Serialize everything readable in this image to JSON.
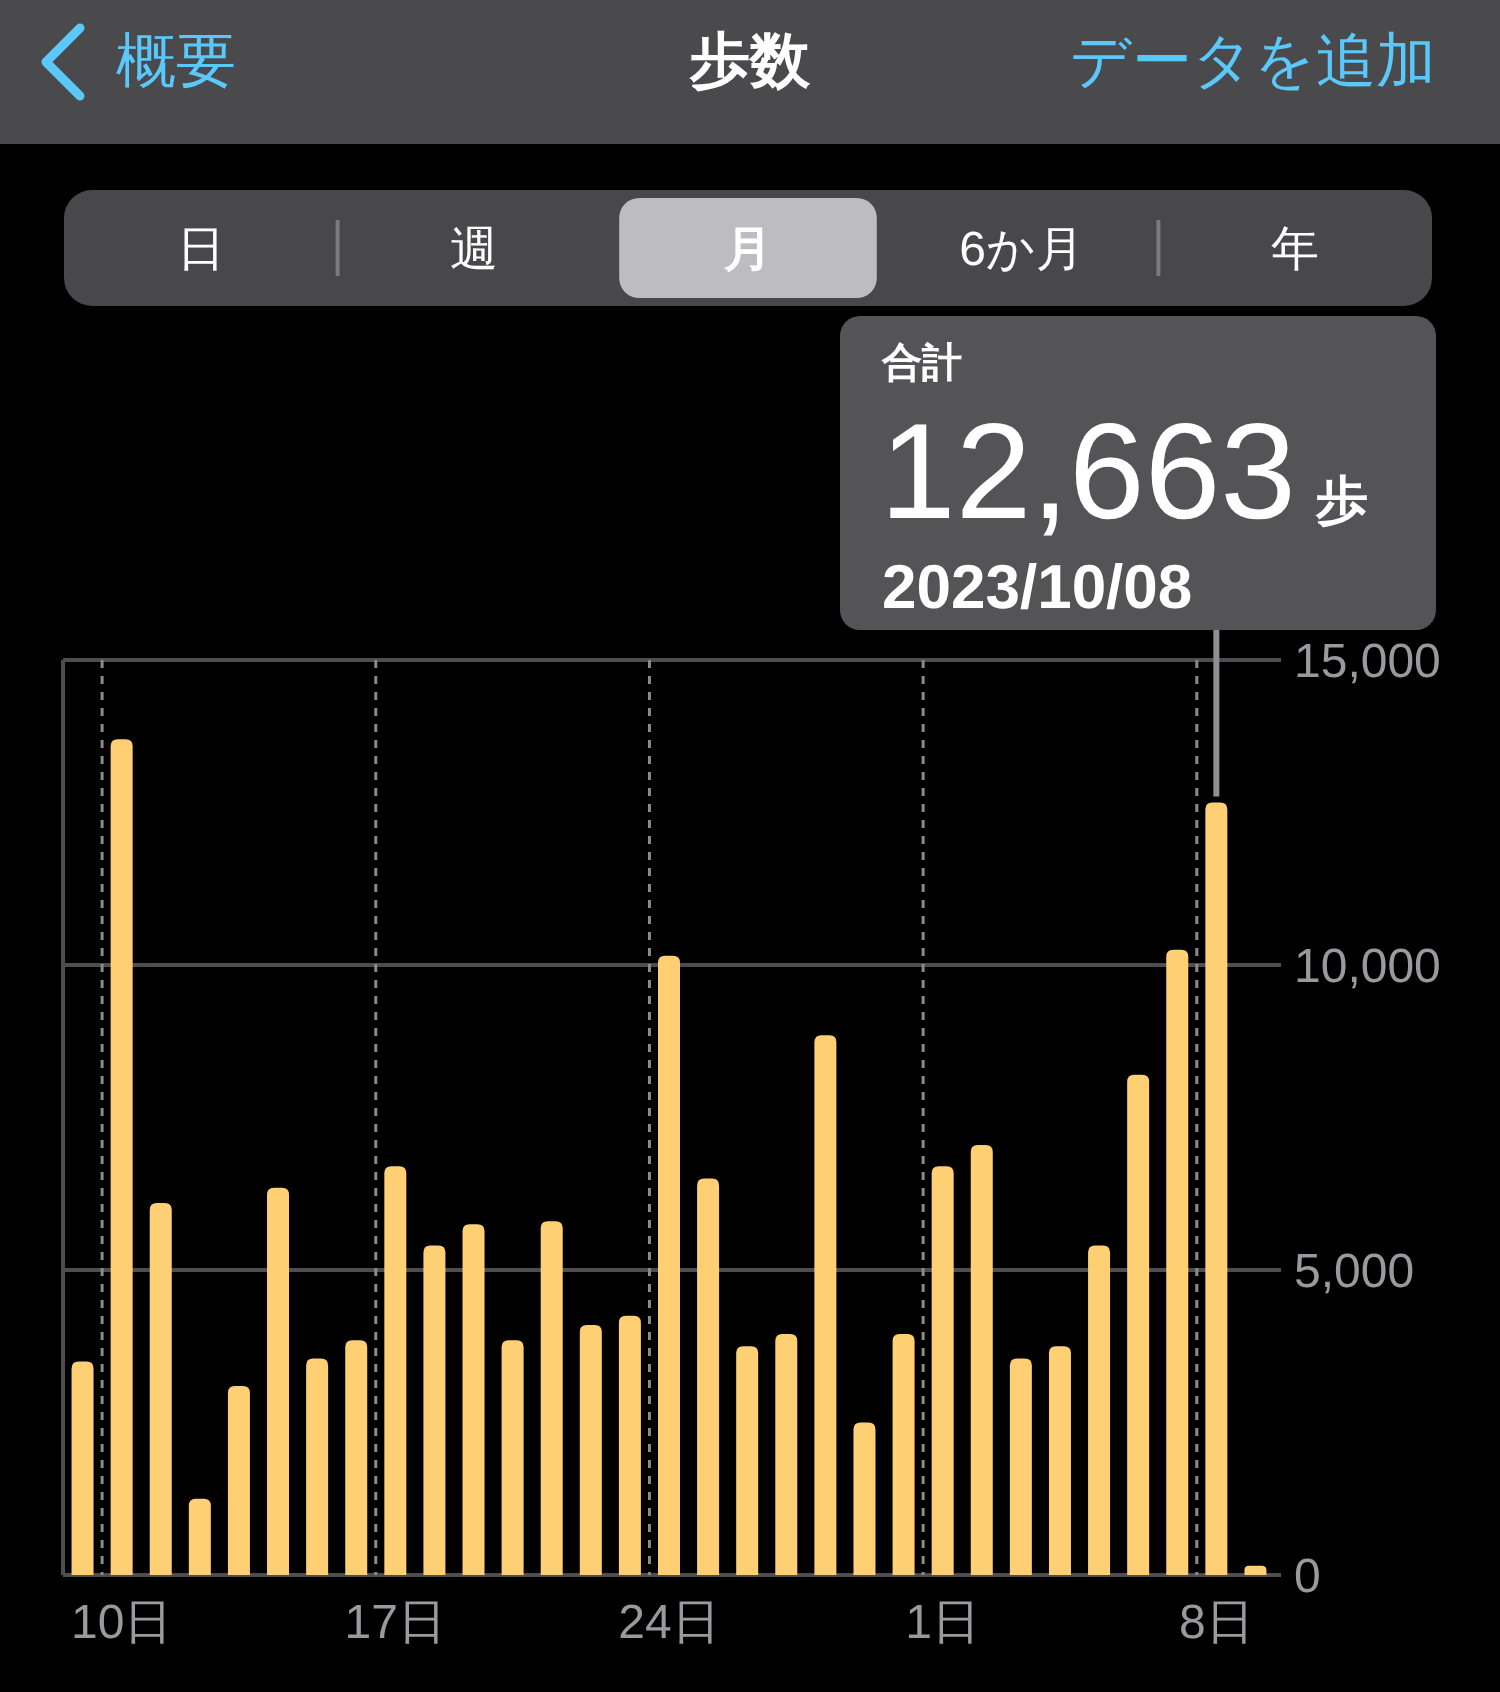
{
  "chart_data": {
    "type": "bar",
    "title": "歩数",
    "categories": [
      null,
      "10日",
      null,
      null,
      null,
      null,
      null,
      null,
      "17日",
      null,
      null,
      null,
      null,
      null,
      null,
      "24日",
      null,
      null,
      null,
      null,
      null,
      null,
      "1日",
      null,
      null,
      null,
      null,
      null,
      null,
      "8日",
      null
    ],
    "values": [
      3500,
      13700,
      6100,
      1250,
      3100,
      6350,
      3550,
      3850,
      6700,
      5400,
      5750,
      3850,
      5800,
      4100,
      4250,
      10150,
      6500,
      3750,
      3950,
      8850,
      2500,
      3950,
      6700,
      7050,
      3550,
      3750,
      5400,
      8200,
      10250,
      12663,
      150
    ],
    "color": "#ffd073",
    "ylim": [
      0,
      15000
    ],
    "yticks": [
      0,
      {
        "value": 5000,
        "label": "5,000"
      },
      {
        "value": 10000,
        "label": "10,000"
      },
      {
        "value": 15000,
        "label": "15,000"
      }
    ],
    "grid": true,
    "annotations": [
      "概要",
      "データを追加",
      "日",
      "週",
      "月",
      "6か月",
      "年",
      "合計",
      {
        "text": "12,663",
        "x": "8日",
        "y": 12663
      },
      "歩",
      "2023/10/08"
    ]
  }
}
